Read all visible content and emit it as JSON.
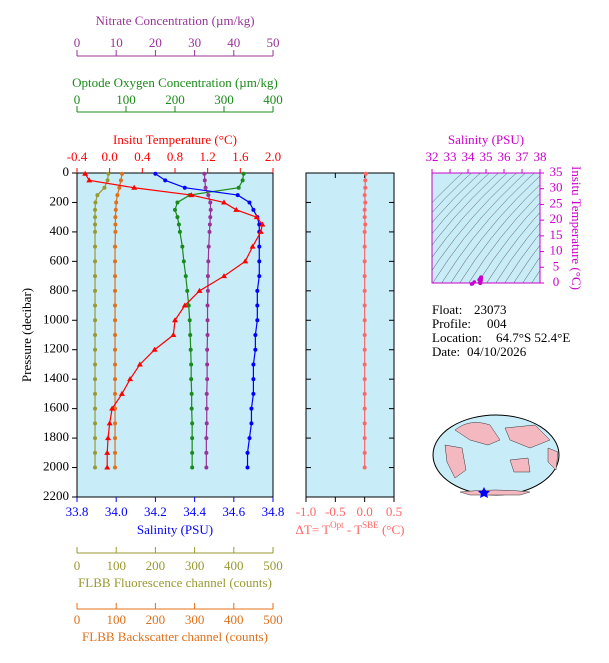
{
  "chart_data": [
    {
      "type": "profile",
      "ylabel": "Pressure (decibar)",
      "ylim": [
        0,
        2200
      ],
      "yticks": [
        0,
        200,
        400,
        600,
        800,
        1000,
        1200,
        1400,
        1600,
        1800,
        2000,
        2200
      ],
      "pressure": [
        5,
        50,
        100,
        150,
        200,
        250,
        300,
        350,
        400,
        500,
        600,
        700,
        800,
        900,
        1000,
        1100,
        1200,
        1300,
        1400,
        1500,
        1600,
        1700,
        1800,
        1900,
        2000
      ],
      "series": [
        {
          "name": "Insitu Temperature (°C)",
          "color": "#ff0000",
          "marker": "triangle",
          "xlim": [
            -0.4,
            2.0
          ],
          "xticks": [
            -0.4,
            {
              "value": 0,
              "label": "0.0"
            },
            0.4,
            0.8,
            1.2,
            1.6,
            {
              "value": 2,
              "label": "2.0"
            }
          ],
          "values": [
            -0.3,
            -0.25,
            0.3,
            1.0,
            1.4,
            1.55,
            1.8,
            1.87,
            1.85,
            1.75,
            1.66,
            1.4,
            1.1,
            0.92,
            0.8,
            0.78,
            0.55,
            0.37,
            0.25,
            0.15,
            0.03,
            0.0,
            -0.02,
            -0.03,
            -0.03
          ]
        },
        {
          "name": "Salinity (PSU)",
          "color": "#0000ff",
          "marker": "circle",
          "xlim": [
            33.8,
            34.8
          ],
          "xticks": [
            33.8,
            {
              "value": 34,
              "label": "34.0"
            },
            34.2,
            34.4,
            34.6,
            34.8
          ],
          "values": [
            34.2,
            34.25,
            34.35,
            34.62,
            34.68,
            34.7,
            34.72,
            34.73,
            34.73,
            34.73,
            34.73,
            34.73,
            34.72,
            34.72,
            34.72,
            34.71,
            34.71,
            34.7,
            34.7,
            34.7,
            34.69,
            34.69,
            34.68,
            34.67,
            34.67
          ]
        },
        {
          "name": "Optode Oxygen Concentration (µm/kg)",
          "color": "#1a8a1a",
          "marker": "circle",
          "xlim": [
            0,
            400
          ],
          "xticks": [
            0,
            100,
            200,
            300,
            400
          ],
          "values": [
            340,
            338,
            330,
            230,
            205,
            200,
            205,
            208,
            210,
            215,
            218,
            222,
            225,
            228,
            230,
            231,
            232,
            233,
            233,
            234,
            234,
            235,
            235,
            235,
            235
          ]
        },
        {
          "name": "Nitrate Concentration (µm/kg)",
          "color": "#993399",
          "marker": "circle",
          "xlim": [
            0,
            50
          ],
          "xticks": [
            0,
            10,
            20,
            30,
            40,
            50
          ],
          "values": [
            32.5,
            32.6,
            32.8,
            33.5,
            34.0,
            34.1,
            34.0,
            33.9,
            33.8,
            33.6,
            33.5,
            33.4,
            33.4,
            33.3,
            33.3,
            33.3,
            33.2,
            33.2,
            33.2,
            33.1,
            33.1,
            33.1,
            33.0,
            33.0,
            33.0
          ]
        },
        {
          "name": "FLBB Fluorescence channel (counts)",
          "color": "#999933",
          "marker": "circle",
          "xlim": [
            0,
            500
          ],
          "xticks": [
            0,
            100,
            200,
            300,
            400,
            500
          ],
          "values": [
            80,
            78,
            70,
            52,
            47,
            46,
            46,
            46,
            46,
            46,
            46,
            46,
            46,
            46,
            46,
            46,
            46,
            46,
            46,
            46,
            46,
            46,
            46,
            46,
            46
          ]
        },
        {
          "name": "FLBB Backscatter channel (counts)",
          "color": "#e0701a",
          "marker": "circle",
          "xlim": [
            0,
            500
          ],
          "xticks": [
            0,
            100,
            200,
            300,
            400,
            500
          ],
          "values": [
            115,
            112,
            108,
            103,
            100,
            99,
            98,
            98,
            98,
            97,
            97,
            97,
            97,
            97,
            97,
            97,
            97,
            97,
            97,
            97,
            97,
            97,
            97,
            97,
            97
          ]
        }
      ]
    },
    {
      "type": "profile",
      "xlabel": [
        "ΔT= T",
        "Opt",
        " - T",
        "SBE",
        " (°C)"
      ],
      "color": "#ff6666",
      "xlim": [
        -1.0,
        0.5
      ],
      "xticks": [
        {
          "value": -1,
          "label": "-1.0"
        },
        -0.5,
        {
          "value": 0,
          "label": "0.0"
        },
        0.5
      ],
      "values": [
        0.02,
        0.01,
        0.01,
        0.0,
        0.01,
        0.0,
        0.0,
        0.01,
        0.0,
        0.0,
        0.0,
        0.0,
        0.0,
        0.0,
        0.0,
        0.0,
        0.0,
        0.0,
        0.0,
        0.0,
        0.0,
        0.0,
        0.0,
        0.0,
        0.0
      ]
    },
    {
      "type": "ts",
      "xlabel": "Salinity (PSU)",
      "ylabel": "Insitu Temperature (°C)",
      "color": "#cc00cc",
      "xlim": [
        32,
        38
      ],
      "xticks": [
        32,
        33,
        34,
        35,
        36,
        37,
        38
      ],
      "ylim": [
        0,
        35
      ],
      "yticks": [
        0,
        5,
        10,
        15,
        20,
        25,
        30,
        35
      ]
    }
  ],
  "info": [
    {
      "label": "Float:",
      "value": "23073"
    },
    {
      "label": "Profile:",
      "value": "004"
    },
    {
      "label": "Location:",
      "value": "64.7°S  52.4°E"
    },
    {
      "label": "Date:",
      "value": "04/10/2026"
    }
  ]
}
